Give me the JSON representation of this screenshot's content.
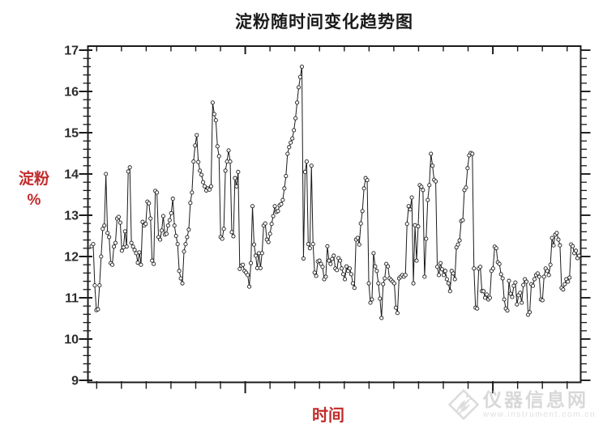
{
  "title": "淀粉随时间变化趋势图",
  "axes": {
    "y_title_line1": "淀粉",
    "y_title_line2": "%",
    "x_title": "时间"
  },
  "watermark": {
    "name": "仪器信息网",
    "url": "www.instrument.com.cn"
  },
  "colors": {
    "title": "#1b1b1b",
    "axis_title": "#c22b2b",
    "frame": "#1b1b1b",
    "series": "#1b1b1b",
    "marker_fill": "#ffffff",
    "tick_label": "#2d2d2d",
    "watermark": "#d8d8d8",
    "background": "#ffffff"
  },
  "chart_data": {
    "type": "line",
    "title": "淀粉随时间变化趋势图",
    "xlabel": "时间",
    "ylabel": "淀粉 %",
    "ylim": [
      9,
      17
    ],
    "yticks": [
      9,
      10,
      11,
      12,
      13,
      14,
      15,
      16,
      17
    ],
    "y_minor_step": 0.2,
    "x_tick_count": 20,
    "x_major_tick_indices": [
      6,
      16
    ],
    "x_ticks_labeled": false,
    "grid": false,
    "legend": "none",
    "marker": "open-circle",
    "values": [
      12.25,
      12.3,
      11.3,
      10.7,
      10.72,
      11.3,
      12.0,
      12.67,
      12.75,
      14.0,
      12.57,
      12.47,
      11.84,
      11.8,
      12.24,
      12.33,
      12.92,
      12.96,
      12.82,
      12.14,
      12.22,
      12.61,
      12.24,
      14.06,
      14.16,
      12.33,
      12.24,
      12.16,
      12.08,
      11.85,
      12.1,
      11.8,
      12.84,
      12.75,
      12.79,
      13.33,
      13.29,
      12.92,
      11.9,
      11.82,
      13.59,
      13.55,
      12.47,
      12.41,
      12.63,
      12.98,
      12.53,
      12.55,
      12.75,
      12.88,
      13.05,
      13.4,
      12.75,
      12.5,
      12.3,
      11.65,
      11.47,
      11.35,
      12.12,
      12.3,
      12.47,
      12.65,
      13.3,
      13.55,
      14.3,
      14.69,
      14.94,
      14.29,
      14.08,
      13.98,
      13.8,
      13.7,
      13.6,
      13.65,
      13.62,
      13.7,
      15.73,
      15.45,
      15.3,
      14.67,
      14.43,
      12.47,
      12.43,
      12.67,
      14.08,
      14.3,
      14.57,
      14.3,
      12.59,
      12.49,
      13.9,
      13.7,
      14.05,
      11.7,
      11.78,
      11.8,
      11.65,
      11.61,
      11.55,
      11.27,
      11.84,
      13.22,
      12.29,
      12.02,
      11.72,
      12.08,
      11.72,
      12.08,
      12.75,
      12.8,
      12.41,
      12.35,
      12.55,
      12.79,
      12.98,
      13.22,
      13.08,
      13.1,
      13.24,
      13.27,
      13.37,
      13.65,
      13.95,
      14.49,
      14.65,
      14.76,
      14.86,
      15.06,
      15.35,
      15.73,
      16.1,
      16.35,
      16.6,
      11.95,
      14.05,
      14.3,
      12.3,
      12.2,
      14.2,
      12.3,
      11.61,
      11.53,
      11.88,
      11.9,
      11.82,
      11.75,
      11.45,
      11.51,
      12.25,
      11.9,
      11.82,
      11.94,
      12.02,
      11.71,
      11.67,
      11.96,
      11.9,
      11.71,
      11.57,
      11.45,
      11.76,
      11.65,
      11.71,
      11.57,
      11.35,
      11.24,
      12.41,
      12.45,
      12.29,
      12.8,
      13.1,
      13.65,
      13.9,
      13.85,
      11.35,
      10.88,
      10.96,
      12.08,
      11.76,
      11.65,
      11.35,
      10.98,
      10.51,
      11.33,
      11.47,
      11.82,
      11.76,
      11.47,
      11.43,
      11.39,
      11.35,
      10.76,
      10.63,
      11.47,
      11.51,
      11.55,
      11.51,
      11.55,
      12.79,
      13.22,
      13.14,
      13.43,
      11.35,
      12.76,
      11.9,
      12.73,
      13.73,
      13.69,
      13.61,
      11.51,
      12.43,
      13.37,
      13.73,
      14.49,
      14.2,
      13.86,
      13.82,
      11.75,
      11.55,
      11.84,
      11.69,
      11.55,
      11.65,
      11.45,
      11.35,
      11.16,
      11.65,
      11.59,
      11.45,
      12.22,
      12.29,
      12.39,
      12.86,
      12.88,
      13.61,
      13.67,
      14.14,
      14.45,
      14.51,
      14.49,
      11.71,
      10.76,
      10.74,
      11.71,
      11.75,
      11.16,
      11.16,
      11.0,
      11.08,
      10.96,
      11.0,
      11.65,
      11.71,
      12.24,
      12.2,
      11.86,
      11.82,
      11.57,
      11.47,
      10.96,
      10.74,
      10.69,
      11.41,
      11.1,
      11.02,
      11.29,
      11.37,
      10.84,
      11.06,
      11.12,
      10.88,
      11.31,
      11.45,
      11.39,
      10.59,
      10.65,
      11.33,
      11.29,
      11.45,
      11.55,
      11.59,
      11.51,
      10.96,
      10.94,
      11.51,
      11.71,
      11.65,
      11.55,
      11.8,
      12.45,
      12.27,
      12.53,
      12.57,
      12.41,
      12.27,
      11.24,
      11.2,
      11.33,
      11.45,
      11.39,
      11.49,
      12.29,
      12.25,
      12.08,
      12.14,
      11.96,
      12.02
    ]
  }
}
